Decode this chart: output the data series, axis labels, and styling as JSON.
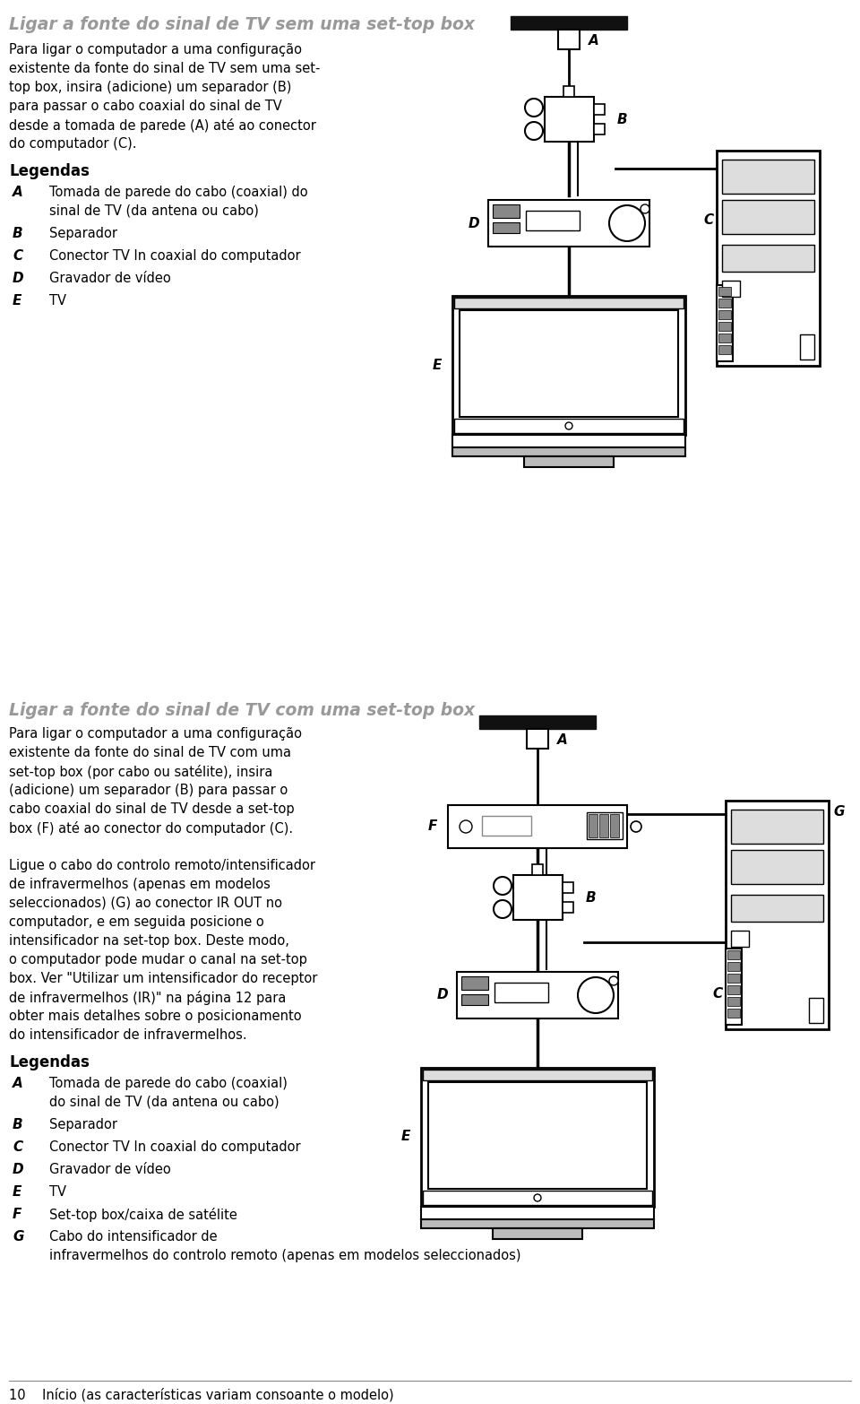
{
  "bg_color": "#ffffff",
  "title1": "Ligar a fonte do sinal de TV sem uma set-top box",
  "title2": "Ligar a fonte do sinal de TV com uma set-top box",
  "title_color": "#999999",
  "bold_color": "#000000",
  "text_color": "#000000",
  "body1_lines": [
    "Para ligar o computador a uma configuração",
    "existente da fonte do sinal de TV sem uma set-",
    "top box, insira (adicione) um separador (B)",
    "para passar o cabo coaxial do sinal de TV",
    "desde a tomada de parede (A) até ao conector",
    "do computador (C)."
  ],
  "body2_lines": [
    "Para ligar o computador a uma configuração",
    "existente da fonte do sinal de TV com uma",
    "set-top box (por cabo ou satélite), insira",
    "(adicione) um separador (B) para passar o",
    "cabo coaxial do sinal de TV desde a set-top",
    "box (F) até ao conector do computador (C).",
    "",
    "Ligue o cabo do controlo remoto/intensificador",
    "de infravermelhos (apenas em modelos",
    "seleccionados) (G) ao conector IR OUT no",
    "computador, e em seguida posicione o",
    "intensificador na set-top box. Deste modo,",
    "o computador pode mudar o canal na set-top",
    "box. Ver \"Utilizar um intensificador do receptor",
    "de infravermelhos (IR)\" na página 12 para",
    "obter mais detalhes sobre o posicionamento",
    "do intensificador de infravermelhos."
  ],
  "legend1_title": "Legendas",
  "legend1": [
    [
      "A",
      "Tomada de parede do cabo (coaxial) do",
      "sinal de TV (da antena ou cabo)"
    ],
    [
      "B",
      "Separador"
    ],
    [
      "C",
      "Conector TV In coaxial do computador"
    ],
    [
      "D",
      "Gravador de vídeo"
    ],
    [
      "E",
      "TV"
    ]
  ],
  "legend2_title": "Legendas",
  "legend2": [
    [
      "A",
      "Tomada de parede do cabo (coaxial)",
      "do sinal de TV (da antena ou cabo)"
    ],
    [
      "B",
      "Separador"
    ],
    [
      "C",
      "Conector TV In coaxial do computador"
    ],
    [
      "D",
      "Gravador de vídeo"
    ],
    [
      "E",
      "TV"
    ],
    [
      "F",
      "Set-top box/caixa de satélite"
    ],
    [
      "G",
      "Cabo do intensificador de",
      "infravermelhos do controlo remoto (apenas em modelos seleccionados)"
    ]
  ],
  "footer": "10    Início (as características variam consoante o modelo)"
}
